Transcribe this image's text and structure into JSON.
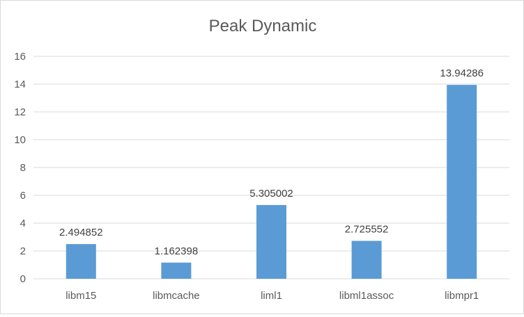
{
  "chart_data": {
    "type": "bar",
    "title": "Peak Dynamic",
    "xlabel": "",
    "ylabel": "",
    "categories": [
      "libm15",
      "libmcache",
      "liml1",
      "libml1assoc",
      "libmpr1"
    ],
    "values": [
      2.494852,
      1.162398,
      5.305002,
      2.725552,
      13.94286
    ],
    "data_labels": [
      "2.494852",
      "1.162398",
      "5.305002",
      "2.725552",
      "13.94286"
    ],
    "ylim": [
      0,
      16
    ],
    "yticks": [
      "0",
      "2",
      "4",
      "6",
      "8",
      "10",
      "12",
      "14",
      "16"
    ],
    "grid": true,
    "legend": "none",
    "bar_color": "#5b9bd5"
  }
}
